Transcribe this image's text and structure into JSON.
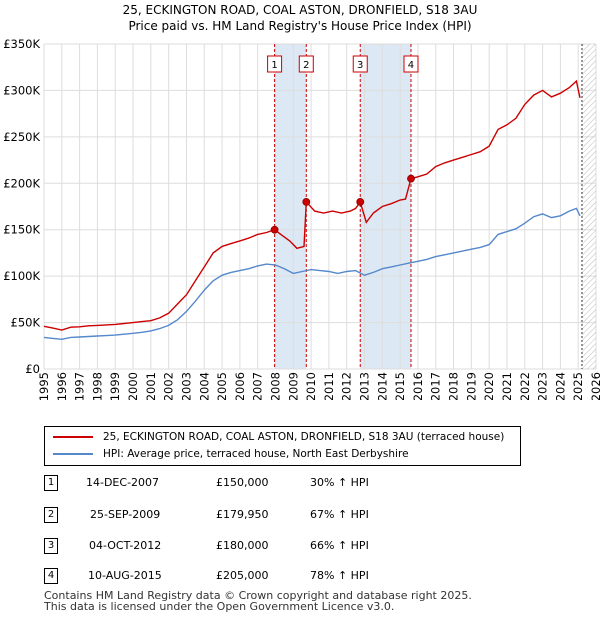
{
  "title_line1": "25, ECKINGTON ROAD, COAL ASTON, DRONFIELD, S18 3AU",
  "title_line2": "Price paid vs. HM Land Registry's House Price Index (HPI)",
  "colors": {
    "price": "#cc0000",
    "hpi": "#5588cc",
    "band": "#dde8f5",
    "vline": "#cc0000",
    "grid": "#dddddd"
  },
  "chart_data": {
    "type": "line",
    "title": "Price paid vs. HM Land Registry's House Price Index (HPI)",
    "xlabel": "",
    "ylabel": "",
    "xlim": [
      1995,
      2026
    ],
    "ylim": [
      0,
      350000
    ],
    "x_ticks": [
      "1995",
      "1996",
      "1997",
      "1998",
      "1999",
      "2000",
      "2001",
      "2002",
      "2003",
      "2004",
      "2005",
      "2006",
      "2007",
      "2008",
      "2009",
      "2010",
      "2011",
      "2012",
      "2013",
      "2014",
      "2015",
      "2016",
      "2017",
      "2018",
      "2019",
      "2020",
      "2021",
      "2022",
      "2023",
      "2024",
      "2025",
      "2026"
    ],
    "y_ticks": [
      {
        "value": 0,
        "label": "£0"
      },
      {
        "value": 50000,
        "label": "£50K"
      },
      {
        "value": 100000,
        "label": "£100K"
      },
      {
        "value": 150000,
        "label": "£150K"
      },
      {
        "value": 200000,
        "label": "£200K"
      },
      {
        "value": 250000,
        "label": "£250K"
      },
      {
        "value": 300000,
        "label": "£300K"
      },
      {
        "value": 350000,
        "label": "£350K"
      }
    ],
    "series": [
      {
        "name": "25, ECKINGTON ROAD, COAL ASTON, DRONFIELD, S18 3AU (terraced house)",
        "color": "#cc0000",
        "points": [
          [
            1995,
            46000
          ],
          [
            1995.5,
            44000
          ],
          [
            1996,
            42000
          ],
          [
            1996.5,
            45000
          ],
          [
            1997,
            45500
          ],
          [
            1997.5,
            46500
          ],
          [
            1998,
            47000
          ],
          [
            1998.5,
            47500
          ],
          [
            1999,
            48000
          ],
          [
            1999.5,
            49000
          ],
          [
            2000,
            50000
          ],
          [
            2000.5,
            51000
          ],
          [
            2001,
            52000
          ],
          [
            2001.5,
            55000
          ],
          [
            2002,
            60000
          ],
          [
            2002.5,
            70000
          ],
          [
            2003,
            80000
          ],
          [
            2003.5,
            95000
          ],
          [
            2004,
            110000
          ],
          [
            2004.5,
            125000
          ],
          [
            2005,
            132000
          ],
          [
            2005.5,
            135000
          ],
          [
            2006,
            138000
          ],
          [
            2006.5,
            141000
          ],
          [
            2007,
            145000
          ],
          [
            2007.5,
            147000
          ],
          [
            2007.95,
            150000
          ],
          [
            2008.3,
            145000
          ],
          [
            2008.8,
            138000
          ],
          [
            2009.2,
            130000
          ],
          [
            2009.6,
            132000
          ],
          [
            2009.73,
            179950
          ],
          [
            2010.2,
            170000
          ],
          [
            2010.7,
            168000
          ],
          [
            2011.2,
            170000
          ],
          [
            2011.7,
            168000
          ],
          [
            2012.2,
            170000
          ],
          [
            2012.5,
            173000
          ],
          [
            2012.76,
            180000
          ],
          [
            2013.1,
            158000
          ],
          [
            2013.5,
            168000
          ],
          [
            2014,
            175000
          ],
          [
            2014.5,
            178000
          ],
          [
            2015,
            182000
          ],
          [
            2015.3,
            183000
          ],
          [
            2015.61,
            205000
          ],
          [
            2016,
            207000
          ],
          [
            2016.5,
            210000
          ],
          [
            2017,
            218000
          ],
          [
            2017.5,
            222000
          ],
          [
            2018,
            225000
          ],
          [
            2018.5,
            228000
          ],
          [
            2019,
            231000
          ],
          [
            2019.5,
            234000
          ],
          [
            2020,
            240000
          ],
          [
            2020.5,
            258000
          ],
          [
            2021,
            263000
          ],
          [
            2021.5,
            270000
          ],
          [
            2022,
            285000
          ],
          [
            2022.5,
            295000
          ],
          [
            2023,
            300000
          ],
          [
            2023.5,
            293000
          ],
          [
            2024,
            297000
          ],
          [
            2024.5,
            303000
          ],
          [
            2024.9,
            310000
          ],
          [
            2025.1,
            292000
          ]
        ]
      },
      {
        "name": "HPI: Average price, terraced house, North East Derbyshire",
        "color": "#5588cc",
        "points": [
          [
            1995,
            34000
          ],
          [
            1995.5,
            33000
          ],
          [
            1996,
            32000
          ],
          [
            1996.5,
            34000
          ],
          [
            1997,
            34500
          ],
          [
            1997.5,
            35000
          ],
          [
            1998,
            35500
          ],
          [
            1998.5,
            36000
          ],
          [
            1999,
            36500
          ],
          [
            1999.5,
            37500
          ],
          [
            2000,
            38500
          ],
          [
            2000.5,
            39500
          ],
          [
            2001,
            41000
          ],
          [
            2001.5,
            43500
          ],
          [
            2002,
            47000
          ],
          [
            2002.5,
            53000
          ],
          [
            2003,
            62000
          ],
          [
            2003.5,
            73000
          ],
          [
            2004,
            85000
          ],
          [
            2004.5,
            95000
          ],
          [
            2005,
            101000
          ],
          [
            2005.5,
            104000
          ],
          [
            2006,
            106000
          ],
          [
            2006.5,
            108000
          ],
          [
            2007,
            111000
          ],
          [
            2007.5,
            113000
          ],
          [
            2008,
            112000
          ],
          [
            2008.5,
            108000
          ],
          [
            2009,
            103000
          ],
          [
            2009.5,
            105000
          ],
          [
            2010,
            107000
          ],
          [
            2010.5,
            106000
          ],
          [
            2011,
            105000
          ],
          [
            2011.5,
            103000
          ],
          [
            2012,
            105000
          ],
          [
            2012.5,
            106000
          ],
          [
            2013,
            101000
          ],
          [
            2013.5,
            104000
          ],
          [
            2014,
            108000
          ],
          [
            2014.5,
            110000
          ],
          [
            2015,
            112000
          ],
          [
            2015.5,
            114000
          ],
          [
            2016,
            116000
          ],
          [
            2016.5,
            118000
          ],
          [
            2017,
            121000
          ],
          [
            2017.5,
            123000
          ],
          [
            2018,
            125000
          ],
          [
            2018.5,
            127000
          ],
          [
            2019,
            129000
          ],
          [
            2019.5,
            131000
          ],
          [
            2020,
            134000
          ],
          [
            2020.5,
            145000
          ],
          [
            2021,
            148000
          ],
          [
            2021.5,
            151000
          ],
          [
            2022,
            157000
          ],
          [
            2022.5,
            164000
          ],
          [
            2023,
            167000
          ],
          [
            2023.5,
            163000
          ],
          [
            2024,
            165000
          ],
          [
            2024.5,
            170000
          ],
          [
            2024.9,
            173000
          ],
          [
            2025.1,
            165000
          ]
        ]
      }
    ],
    "sales": [
      {
        "n": "1",
        "date": "14-DEC-2007",
        "x": 2007.95,
        "price": 150000,
        "price_label": "£150,000",
        "pct": "30% ↑ HPI"
      },
      {
        "n": "2",
        "date": "25-SEP-2009",
        "x": 2009.73,
        "price": 179950,
        "price_label": "£179,950",
        "pct": "67% ↑ HPI"
      },
      {
        "n": "3",
        "date": "04-OCT-2012",
        "x": 2012.76,
        "price": 180000,
        "price_label": "£180,000",
        "pct": "66% ↑ HPI"
      },
      {
        "n": "4",
        "date": "10-AUG-2015",
        "x": 2015.61,
        "price": 205000,
        "price_label": "£205,000",
        "pct": "78% ↑ HPI"
      }
    ],
    "bands": [
      [
        2007.95,
        2009.73
      ],
      [
        2012.76,
        2015.61
      ]
    ],
    "forecast_start": 2025.1
  },
  "legend": {
    "price_label": "25, ECKINGTON ROAD, COAL ASTON, DRONFIELD, S18 3AU (terraced house)",
    "hpi_label": "HPI: Average price, terraced house, North East Derbyshire"
  },
  "table": [
    {
      "n": "1",
      "date": "14-DEC-2007",
      "price": "£150,000",
      "pct": "30% ↑ HPI"
    },
    {
      "n": "2",
      "date": "25-SEP-2009",
      "price": "£179,950",
      "pct": "67% ↑ HPI"
    },
    {
      "n": "3",
      "date": "04-OCT-2012",
      "price": "£180,000",
      "pct": "66% ↑ HPI"
    },
    {
      "n": "4",
      "date": "10-AUG-2015",
      "price": "£205,000",
      "pct": "78% ↑ HPI"
    }
  ],
  "footer": {
    "line1": "Contains HM Land Registry data © Crown copyright and database right 2025.",
    "line2": "This data is licensed under the Open Government Licence v3.0."
  }
}
